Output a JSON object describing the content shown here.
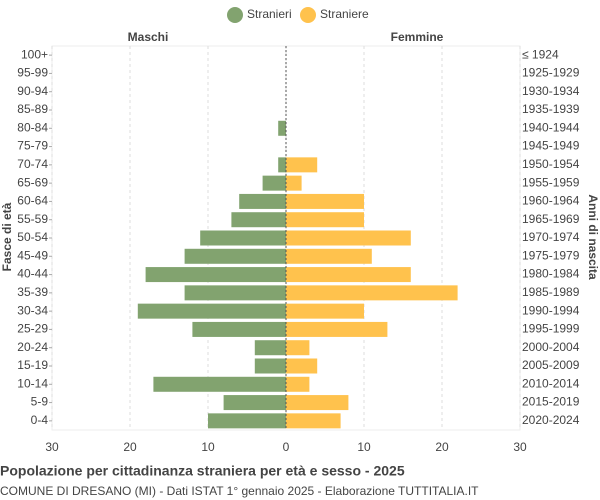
{
  "chart_data": {
    "type": "pyramid",
    "title": "Popolazione per cittadinanza straniera per età e sesso - 2025",
    "subtitle": "COMUNE DI DRESANO (MI) - Dati ISTAT 1° gennaio 2025 - Elaborazione TUTTITALIA.IT",
    "left_header": "Maschi",
    "right_header": "Femmine",
    "ylabel": "Fasce di età",
    "y2label": "Anni di nascita",
    "categories": [
      "100+",
      "95-99",
      "90-94",
      "85-89",
      "80-84",
      "75-79",
      "70-74",
      "65-69",
      "60-64",
      "55-59",
      "50-54",
      "45-49",
      "40-44",
      "35-39",
      "30-34",
      "25-29",
      "20-24",
      "15-19",
      "10-14",
      "5-9",
      "0-4"
    ],
    "y2_categories": [
      "≤ 1924",
      "1925-1929",
      "1930-1934",
      "1935-1939",
      "1940-1944",
      "1945-1949",
      "1950-1954",
      "1955-1959",
      "1960-1964",
      "1965-1969",
      "1970-1974",
      "1975-1979",
      "1980-1984",
      "1985-1989",
      "1990-1994",
      "1995-1999",
      "2000-2004",
      "2005-2009",
      "2010-2014",
      "2015-2019",
      "2020-2024"
    ],
    "series": [
      {
        "name": "Stranieri",
        "color": "#82a36f",
        "side": "left",
        "values": [
          0,
          0,
          0,
          0,
          1,
          0,
          1,
          3,
          6,
          7,
          11,
          13,
          18,
          13,
          19,
          12,
          4,
          4,
          17,
          8,
          10
        ]
      },
      {
        "name": "Straniere",
        "color": "#ffc24d",
        "side": "right",
        "values": [
          0,
          0,
          0,
          0,
          0,
          0,
          4,
          2,
          10,
          10,
          16,
          11,
          16,
          22,
          10,
          13,
          3,
          4,
          3,
          8,
          7
        ]
      }
    ],
    "xlim": [
      -30,
      30
    ],
    "xticks": [
      {
        "value": -30,
        "label": "30"
      },
      {
        "value": -20,
        "label": "20"
      },
      {
        "value": -10,
        "label": "10"
      },
      0,
      10,
      20,
      30
    ],
    "grid": true
  }
}
